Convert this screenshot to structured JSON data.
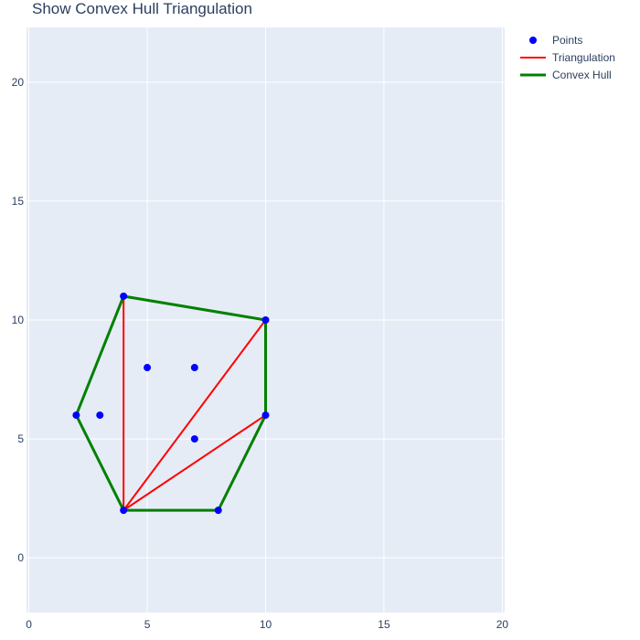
{
  "chart_data": {
    "type": "scatter",
    "title": "Show Convex Hull Triangulation",
    "xlabel": "",
    "ylabel": "",
    "xlim": [
      -0.1,
      20.1
    ],
    "ylim": [
      -2.3,
      22.3
    ],
    "x_ticks": [
      0,
      5,
      10,
      15,
      20
    ],
    "y_ticks": [
      0,
      5,
      10,
      15,
      20
    ],
    "grid": true,
    "legend_position": "top-right",
    "colors": {
      "plot_bg": "#e5ecf6",
      "grid": "#ffffff",
      "points": "#0000ff",
      "triangulation": "#ff0000",
      "hull": "#008000",
      "text": "#2a3f5f"
    },
    "series": [
      {
        "name": "Points",
        "mode": "markers",
        "points": [
          [
            2,
            6
          ],
          [
            3,
            6
          ],
          [
            4,
            2
          ],
          [
            4,
            11
          ],
          [
            5,
            8
          ],
          [
            7,
            8
          ],
          [
            7,
            5
          ],
          [
            8,
            2
          ],
          [
            10,
            6
          ],
          [
            10,
            10
          ]
        ]
      },
      {
        "name": "Triangulation",
        "mode": "lines",
        "segments": [
          [
            [
              4,
              2
            ],
            [
              4,
              11
            ]
          ],
          [
            [
              4,
              2
            ],
            [
              10,
              10
            ]
          ],
          [
            [
              4,
              2
            ],
            [
              10,
              6
            ]
          ]
        ]
      },
      {
        "name": "Convex Hull",
        "mode": "lines",
        "points": [
          [
            2,
            6
          ],
          [
            4,
            11
          ],
          [
            10,
            10
          ],
          [
            10,
            6
          ],
          [
            8,
            2
          ],
          [
            4,
            2
          ],
          [
            2,
            6
          ]
        ]
      }
    ]
  }
}
